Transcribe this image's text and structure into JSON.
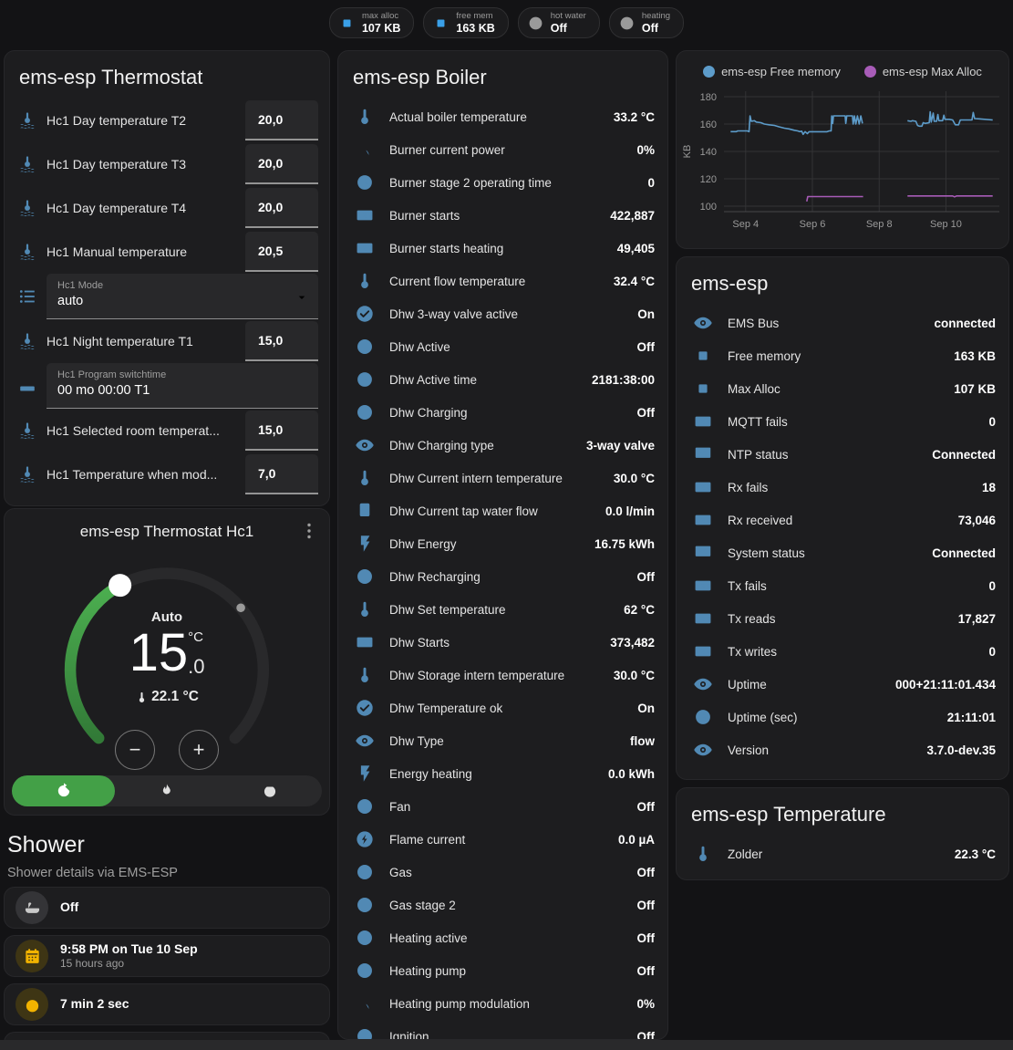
{
  "badges": [
    {
      "icon": "chip",
      "tone": "blue",
      "label": "max alloc",
      "value": "107 KB"
    },
    {
      "icon": "chip",
      "tone": "blue",
      "label": "free mem",
      "value": "163 KB"
    },
    {
      "icon": "circle",
      "tone": "grey",
      "label": "hot water",
      "value": "Off"
    },
    {
      "icon": "circle",
      "tone": "grey",
      "label": "heating",
      "value": "Off"
    }
  ],
  "thermostat_card": {
    "title": "ems-esp Thermostat",
    "rows": [
      {
        "icon": "thermometer-water",
        "label": "Hc1 Day temperature T2",
        "type": "number",
        "value": "20,0"
      },
      {
        "icon": "thermometer-water",
        "label": "Hc1 Day temperature T3",
        "type": "number",
        "value": "20,0"
      },
      {
        "icon": "thermometer-water",
        "label": "Hc1 Day temperature T4",
        "type": "number",
        "value": "20,0"
      },
      {
        "icon": "thermometer-water",
        "label": "Hc1 Manual temperature",
        "type": "number",
        "value": "20,5"
      },
      {
        "icon": "list",
        "label": "Hc1 Mode",
        "type": "select",
        "value": "auto"
      },
      {
        "icon": "thermometer-water",
        "label": "Hc1 Night temperature T1",
        "type": "number",
        "value": "15,0"
      },
      {
        "icon": "valve",
        "label": "Hc1 Program switchtime",
        "type": "text",
        "value": "00 mo 00:00 T1"
      },
      {
        "icon": "thermometer-water",
        "label": "Hc1 Selected room temperat...",
        "type": "number",
        "value": "15,0"
      },
      {
        "icon": "thermometer-water",
        "label": "Hc1 Temperature when mod...",
        "type": "number",
        "value": "7,0"
      }
    ]
  },
  "hc1_card": {
    "title": "ems-esp Thermostat Hc1",
    "mode_label": "Auto",
    "target_whole": "15",
    "target_decimal": ".0",
    "target_unit": "°C",
    "current_temp": "22.1 °C",
    "minus_label": "−",
    "plus_label": "+",
    "accent_green": "#43a047",
    "modes": [
      {
        "name": "auto",
        "icon_ref": "#i-autorenew",
        "active": true
      },
      {
        "name": "heat",
        "icon_ref": "#i-flame",
        "active": false
      },
      {
        "name": "off",
        "icon_ref": "#i-power",
        "active": false
      }
    ]
  },
  "shower": {
    "title": "Shower",
    "subtitle": "Shower details via EMS-ESP",
    "cards": [
      {
        "icon": "bathtub",
        "tone": "grey",
        "value": "Off"
      },
      {
        "icon": "calendar",
        "tone": "amber",
        "value": "9:58 PM on Tue 10 Sep",
        "sub": "15 hours ago"
      },
      {
        "icon": "timer",
        "tone": "amber",
        "value": "7 min 2 sec"
      }
    ],
    "frost_icon": "snowflake-alert"
  },
  "boiler_card": {
    "title": "ems-esp Boiler",
    "rows": [
      {
        "icon": "thermometer",
        "label": "Actual boiler temperature",
        "value": "33.2 °C"
      },
      {
        "icon": "angle",
        "label": "Burner current power",
        "value": "0%"
      },
      {
        "icon": "clock",
        "label": "Burner stage 2 operating time",
        "value": "0"
      },
      {
        "icon": "counter",
        "label": "Burner starts",
        "value": "422,887"
      },
      {
        "icon": "counter",
        "label": "Burner starts heating",
        "value": "49,405"
      },
      {
        "icon": "thermometer",
        "label": "Current flow temperature",
        "value": "32.4 °C"
      },
      {
        "icon": "check-circle",
        "label": "Dhw 3-way valve active",
        "value": "On"
      },
      {
        "icon": "circle",
        "label": "Dhw Active",
        "value": "Off"
      },
      {
        "icon": "clock",
        "label": "Dhw Active time",
        "value": "2181:38:00"
      },
      {
        "icon": "circle",
        "label": "Dhw Charging",
        "value": "Off"
      },
      {
        "icon": "eye",
        "label": "Dhw Charging type",
        "value": "3-way valve"
      },
      {
        "icon": "thermometer",
        "label": "Dhw Current intern temperature",
        "value": "30.0 °C"
      },
      {
        "icon": "water-boiler",
        "label": "Dhw Current tap water flow",
        "value": "0.0 l/min"
      },
      {
        "icon": "flash",
        "label": "Dhw Energy",
        "value": "16.75 kWh"
      },
      {
        "icon": "circle",
        "label": "Dhw Recharging",
        "value": "Off"
      },
      {
        "icon": "thermometer",
        "label": "Dhw Set temperature",
        "value": "62 °C"
      },
      {
        "icon": "counter",
        "label": "Dhw Starts",
        "value": "373,482"
      },
      {
        "icon": "thermometer",
        "label": "Dhw Storage intern temperature",
        "value": "30.0 °C"
      },
      {
        "icon": "check-circle",
        "label": "Dhw Temperature ok",
        "value": "On"
      },
      {
        "icon": "eye",
        "label": "Dhw Type",
        "value": "flow"
      },
      {
        "icon": "flash",
        "label": "Energy heating",
        "value": "0.0 kWh"
      },
      {
        "icon": "circle",
        "label": "Fan",
        "value": "Off"
      },
      {
        "icon": "flash-circle",
        "label": "Flame current",
        "value": "0.0 µA"
      },
      {
        "icon": "circle",
        "label": "Gas",
        "value": "Off"
      },
      {
        "icon": "circle",
        "label": "Gas stage 2",
        "value": "Off"
      },
      {
        "icon": "circle",
        "label": "Heating active",
        "value": "Off"
      },
      {
        "icon": "circle",
        "label": "Heating pump",
        "value": "Off"
      },
      {
        "icon": "angle",
        "label": "Heating pump modulation",
        "value": "0%"
      },
      {
        "icon": "circle",
        "label": "Ignition",
        "value": "Off"
      }
    ]
  },
  "ems_card": {
    "title": "ems-esp",
    "rows": [
      {
        "icon": "eye",
        "label": "EMS Bus",
        "value": "connected"
      },
      {
        "icon": "chip",
        "label": "Free memory",
        "value": "163 KB"
      },
      {
        "icon": "chip",
        "label": "Max Alloc",
        "value": "107 KB"
      },
      {
        "icon": "counter",
        "label": "MQTT fails",
        "value": "0"
      },
      {
        "icon": "monitor-check",
        "label": "NTP status",
        "value": "Connected"
      },
      {
        "icon": "counter",
        "label": "Rx fails",
        "value": "18"
      },
      {
        "icon": "counter",
        "label": "Rx received",
        "value": "73,046"
      },
      {
        "icon": "monitor-check",
        "label": "System status",
        "value": "Connected"
      },
      {
        "icon": "counter",
        "label": "Tx fails",
        "value": "0"
      },
      {
        "icon": "counter",
        "label": "Tx reads",
        "value": "17,827"
      },
      {
        "icon": "counter",
        "label": "Tx writes",
        "value": "0"
      },
      {
        "icon": "eye",
        "label": "Uptime",
        "value": "000+21:11:01.434"
      },
      {
        "icon": "clock",
        "label": "Uptime (sec)",
        "value": "21:11:01"
      },
      {
        "icon": "eye",
        "label": "Version",
        "value": "3.7.0-dev.35"
      }
    ]
  },
  "temp_card": {
    "title": "ems-esp Temperature",
    "rows": [
      {
        "icon": "thermometer",
        "label": "Zolder",
        "value": "22.3 °C"
      }
    ]
  },
  "chart_data": {
    "type": "line",
    "title": "",
    "xlabel": "",
    "ylabel": "KB",
    "legend_position": "top",
    "grid": true,
    "yticks": [
      100,
      120,
      140,
      160,
      180
    ],
    "yrange": [
      96,
      184
    ],
    "xrange": [
      3.35,
      11.6
    ],
    "xticks": [
      {
        "v": 4,
        "label": "Sep 4"
      },
      {
        "v": 6,
        "label": "Sep 6"
      },
      {
        "v": 8,
        "label": "Sep 8"
      },
      {
        "v": 10,
        "label": "Sep 10"
      }
    ],
    "series": [
      {
        "name": "ems-esp Free memory",
        "color": "#5d9cca",
        "segments": [
          [
            [
              3.55,
              154.5
            ],
            [
              3.72,
              154.5
            ],
            [
              3.76,
              155
            ],
            [
              4.05,
              155
            ],
            [
              4.1,
              154.5
            ],
            [
              4.13,
              166
            ],
            [
              4.17,
              162
            ],
            [
              4.26,
              162.5
            ],
            [
              4.32,
              161.5
            ],
            [
              4.46,
              161
            ],
            [
              4.56,
              160
            ],
            [
              4.7,
              159.5
            ],
            [
              4.86,
              159
            ],
            [
              5.0,
              158
            ],
            [
              5.16,
              157
            ],
            [
              5.3,
              156.5
            ],
            [
              5.46,
              155.5
            ],
            [
              5.56,
              155
            ],
            [
              5.62,
              154.5
            ],
            [
              5.68,
              154.8
            ],
            [
              5.72,
              152.5
            ],
            [
              5.78,
              154.5
            ],
            [
              5.85,
              153
            ],
            [
              5.9,
              154.4
            ],
            [
              6.44,
              154.4
            ],
            [
              6.5,
              155
            ],
            [
              6.56,
              155
            ],
            [
              6.58,
              166
            ],
            [
              6.61,
              160.5
            ],
            [
              6.63,
              166
            ],
            [
              6.98,
              166
            ],
            [
              7.0,
              160.5
            ],
            [
              7.03,
              166
            ],
            [
              7.2,
              166
            ],
            [
              7.22,
              160
            ],
            [
              7.26,
              166
            ],
            [
              7.3,
              160
            ],
            [
              7.35,
              166
            ],
            [
              7.4,
              160
            ],
            [
              7.45,
              166
            ],
            [
              7.5,
              160.5
            ]
          ],
          [
            [
              8.85,
              162.5
            ],
            [
              8.95,
              162
            ],
            [
              9.0,
              162.5
            ],
            [
              9.1,
              162
            ],
            [
              9.15,
              159
            ],
            [
              9.2,
              158.5
            ],
            [
              9.28,
              158.5
            ],
            [
              9.32,
              161
            ],
            [
              9.38,
              160.5
            ],
            [
              9.45,
              160.8
            ],
            [
              9.5,
              161
            ],
            [
              9.53,
              169
            ],
            [
              9.56,
              161.5
            ],
            [
              9.62,
              168
            ],
            [
              9.65,
              162
            ],
            [
              9.72,
              162
            ],
            [
              9.76,
              167
            ],
            [
              9.79,
              162.5
            ],
            [
              9.9,
              162.5
            ],
            [
              9.94,
              166.5
            ],
            [
              9.97,
              163.5
            ],
            [
              10.1,
              163.5
            ],
            [
              10.2,
              163
            ],
            [
              10.28,
              159.5
            ],
            [
              10.38,
              159.5
            ],
            [
              10.43,
              163
            ],
            [
              10.6,
              163
            ],
            [
              10.78,
              163
            ],
            [
              10.82,
              168.5
            ],
            [
              10.86,
              164
            ],
            [
              11.0,
              163.8
            ],
            [
              11.4,
              163
            ]
          ]
        ]
      },
      {
        "name": "ems-esp Max Alloc",
        "color": "#a85cb8",
        "segments": [
          [
            [
              5.83,
              103.5
            ],
            [
              5.86,
              107
            ],
            [
              7.52,
              107
            ]
          ],
          [
            [
              8.85,
              107.5
            ],
            [
              10.2,
              107.5
            ],
            [
              10.26,
              106.8
            ],
            [
              10.32,
              107.5
            ],
            [
              11.4,
              107.5
            ]
          ]
        ]
      }
    ]
  }
}
